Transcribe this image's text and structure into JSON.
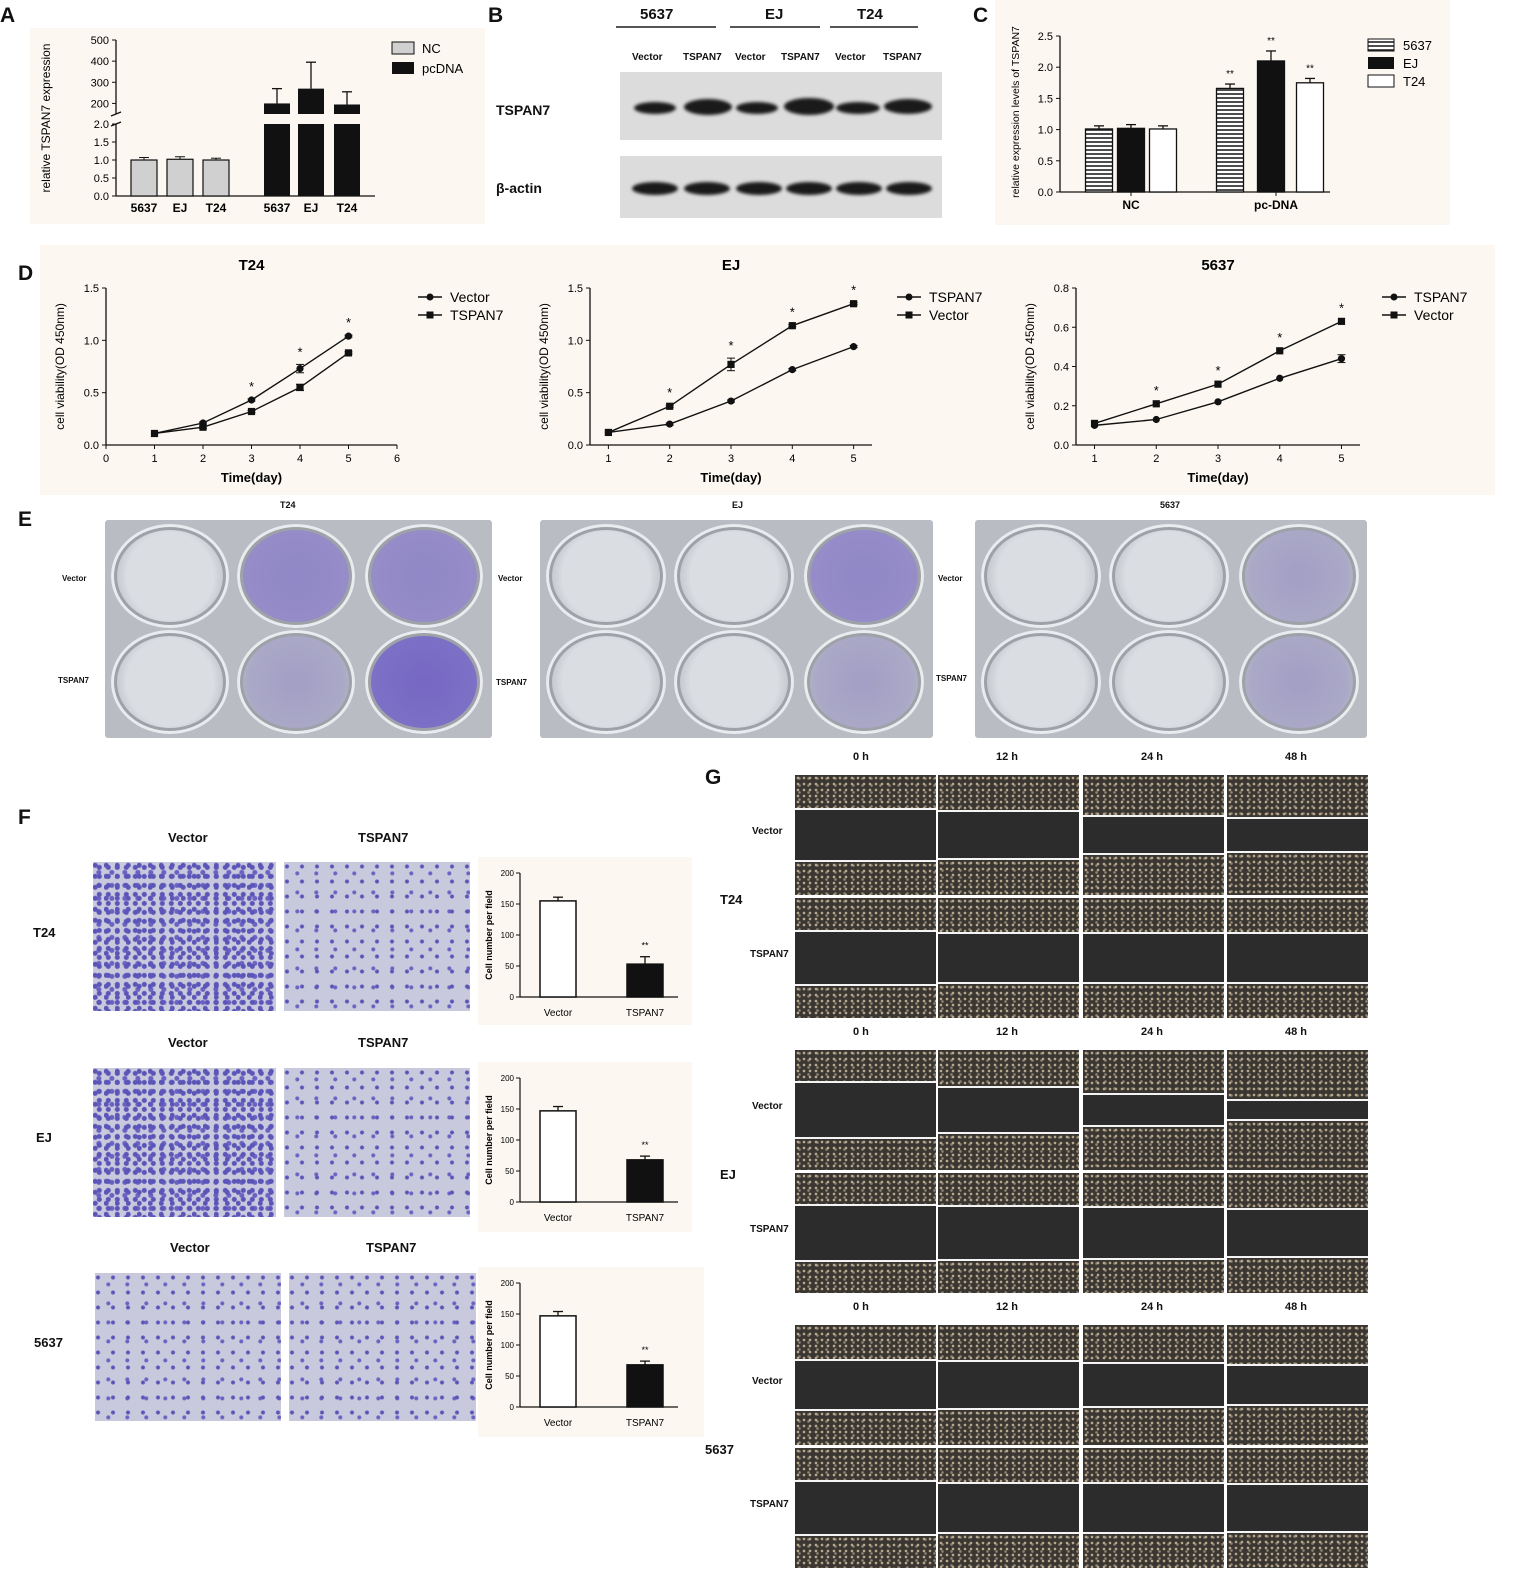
{
  "panel_letters": [
    "A",
    "B",
    "C",
    "D",
    "E",
    "F",
    "G"
  ],
  "panelA": {
    "ylabel": "relative TSPAN7 expression",
    "legend": [
      {
        "name": "NC",
        "color": "#d0d0d0"
      },
      {
        "name": "pcDNA",
        "color": "#111111"
      }
    ],
    "upper_ticks": [
      "500",
      "400",
      "300",
      "200"
    ],
    "lower_ticks": [
      "2.0",
      "1.5",
      "1.0",
      "0.5",
      "0.0"
    ],
    "categories": [
      "5637",
      "EJ",
      "T24",
      "5637",
      "EJ",
      "T24"
    ]
  },
  "panelB": {
    "groups": [
      "5637",
      "EJ",
      "T24"
    ],
    "lanes": [
      "Vector",
      "TSPAN7",
      "Vector",
      "TSPAN7",
      "Vector",
      "TSPAN7"
    ],
    "rows": [
      "TSPAN7",
      "β-actin"
    ]
  },
  "panelC": {
    "ylabel": "relative expression levels of TSPAN7",
    "ticks": [
      "0.0",
      "0.5",
      "1.0",
      "1.5",
      "2.0",
      "2.5"
    ],
    "groups": [
      "NC",
      "pc-DNA"
    ],
    "legend": [
      "5637",
      "EJ",
      "T24"
    ],
    "sig": [
      "**",
      "**",
      "**"
    ]
  },
  "panelD": {
    "xlabel": "Time(day)",
    "ylabel": "cell viability(OD 450nm)",
    "charts": [
      {
        "title": "T24",
        "legend": [
          "Vector",
          "TSPAN7"
        ],
        "yticks": [
          "0.0",
          "0.5",
          "1.0",
          "1.5"
        ],
        "xticks": [
          "0",
          "1",
          "2",
          "3",
          "4",
          "5",
          "6"
        ],
        "sig": [
          "*",
          "*",
          "*"
        ]
      },
      {
        "title": "EJ",
        "legend": [
          "TSPAN7",
          "Vector"
        ],
        "yticks": [
          "0.0",
          "0.5",
          "1.0",
          "1.5"
        ],
        "xticks": [
          "1",
          "2",
          "3",
          "4",
          "5"
        ],
        "sig": [
          "*",
          "*",
          "*",
          "*"
        ]
      },
      {
        "title": "5637",
        "legend": [
          "TSPAN7",
          "Vector"
        ],
        "yticks": [
          "0.0",
          "0.2",
          "0.4",
          "0.6",
          "0.8"
        ],
        "xticks": [
          "1",
          "2",
          "3",
          "4",
          "5"
        ],
        "sig": [
          "*",
          "*",
          "*",
          "*"
        ]
      }
    ]
  },
  "panelE": {
    "plates": [
      {
        "title": "T24",
        "rows": [
          "Vector",
          "TSPAN7"
        ]
      },
      {
        "title": "EJ",
        "rows": [
          "Vector",
          "TSPAN7"
        ]
      },
      {
        "title": "5637",
        "rows": [
          "Vector",
          "TSPAN7"
        ]
      }
    ]
  },
  "panelF": {
    "col_labels": [
      "Vector",
      "TSPAN7"
    ],
    "rows": [
      "T24",
      "EJ",
      "5637"
    ],
    "ylabel": "Cell number per field",
    "ticks": [
      "0",
      "50",
      "100",
      "150",
      "200"
    ],
    "categories": [
      "Vector",
      "TSPAN7"
    ],
    "sig": "**"
  },
  "panelG": {
    "times": [
      "0 h",
      "12 h",
      "24 h",
      "48 h"
    ],
    "cell_lines": [
      "T24",
      "EJ",
      "5637"
    ],
    "rows": [
      "Vector",
      "TSPAN7"
    ]
  },
  "chart_data": [
    {
      "type": "bar",
      "panel": "A",
      "ylabel": "relative TSPAN7 expression",
      "categories": [
        "5637",
        "EJ",
        "T24",
        "5637",
        "EJ",
        "T24"
      ],
      "series": [
        {
          "name": "NC",
          "values": [
            1.0,
            1.02,
            1.0,
            null,
            null,
            null
          ],
          "errors": [
            0.07,
            0.07,
            0.05,
            null,
            null,
            null
          ]
        },
        {
          "name": "pcDNA",
          "values": [
            null,
            null,
            null,
            200,
            270,
            195
          ],
          "errors": [
            null,
            null,
            null,
            70,
            125,
            60
          ]
        }
      ],
      "broken_axis": {
        "lower": [
          0,
          2.0
        ],
        "upper": [
          150,
          500
        ]
      }
    },
    {
      "type": "bar",
      "panel": "C",
      "ylabel": "relative expression levels of TSPAN7",
      "categories": [
        "NC",
        "pc-DNA"
      ],
      "series": [
        {
          "name": "5637",
          "values": [
            1.01,
            1.66
          ],
          "errors": [
            0.05,
            0.07
          ]
        },
        {
          "name": "EJ",
          "values": [
            1.02,
            2.1
          ],
          "errors": [
            0.06,
            0.16
          ]
        },
        {
          "name": "T24",
          "values": [
            1.01,
            1.75
          ],
          "errors": [
            0.05,
            0.07
          ]
        }
      ],
      "ylim": [
        0,
        2.5
      ]
    },
    {
      "type": "line",
      "panel": "D",
      "title": "T24",
      "xlabel": "Time(day)",
      "ylabel": "cell viability(OD 450nm)",
      "x": [
        1,
        2,
        3,
        4,
        5
      ],
      "series": [
        {
          "name": "Vector",
          "values": [
            0.11,
            0.21,
            0.43,
            0.73,
            1.04
          ],
          "errors": [
            0,
            0.01,
            0.01,
            0.04,
            0.01
          ]
        },
        {
          "name": "TSPAN7",
          "values": [
            0.11,
            0.17,
            0.32,
            0.55,
            0.88
          ],
          "errors": [
            0,
            0.01,
            0.01,
            0.03,
            0.01
          ]
        }
      ],
      "xlim": [
        0,
        6
      ],
      "ylim": [
        0,
        1.5
      ]
    },
    {
      "type": "line",
      "panel": "D",
      "title": "EJ",
      "xlabel": "Time(day)",
      "ylabel": "cell viability(OD 450nm)",
      "x": [
        1,
        2,
        3,
        4,
        5
      ],
      "series": [
        {
          "name": "TSPAN7",
          "values": [
            0.12,
            0.2,
            0.42,
            0.72,
            0.94
          ],
          "errors": [
            0,
            0.01,
            0.01,
            0.01,
            0.01
          ]
        },
        {
          "name": "Vector",
          "values": [
            0.12,
            0.37,
            0.77,
            1.14,
            1.35
          ],
          "errors": [
            0,
            0.01,
            0.06,
            0.01,
            0.01
          ]
        }
      ],
      "ylim": [
        0,
        1.5
      ]
    },
    {
      "type": "line",
      "panel": "D",
      "title": "5637",
      "xlabel": "Time(day)",
      "ylabel": "cell viability(OD 450nm)",
      "x": [
        1,
        2,
        3,
        4,
        5
      ],
      "series": [
        {
          "name": "TSPAN7",
          "values": [
            0.1,
            0.13,
            0.22,
            0.34,
            0.44
          ],
          "errors": [
            0,
            0.005,
            0.005,
            0.005,
            0.02
          ]
        },
        {
          "name": "Vector",
          "values": [
            0.11,
            0.21,
            0.31,
            0.48,
            0.63
          ],
          "errors": [
            0,
            0.005,
            0.005,
            0.005,
            0.005
          ]
        }
      ],
      "ylim": [
        0,
        0.8
      ]
    },
    {
      "type": "bar",
      "panel": "F",
      "title": "T24",
      "ylabel": "Cell number per field",
      "categories": [
        "Vector",
        "TSPAN7"
      ],
      "values": [
        155,
        53
      ],
      "errors": [
        6,
        12
      ],
      "ylim": [
        0,
        200
      ]
    },
    {
      "type": "bar",
      "panel": "F",
      "title": "EJ",
      "ylabel": "Cell number per field",
      "categories": [
        "Vector",
        "TSPAN7"
      ],
      "values": [
        147,
        68
      ],
      "errors": [
        7,
        6
      ],
      "ylim": [
        0,
        200
      ]
    },
    {
      "type": "bar",
      "panel": "F",
      "title": "5637",
      "ylabel": "Cell number per field",
      "categories": [
        "Vector",
        "TSPAN7"
      ],
      "values": [
        147,
        68
      ],
      "errors": [
        7,
        6
      ],
      "ylim": [
        0,
        200
      ]
    }
  ]
}
